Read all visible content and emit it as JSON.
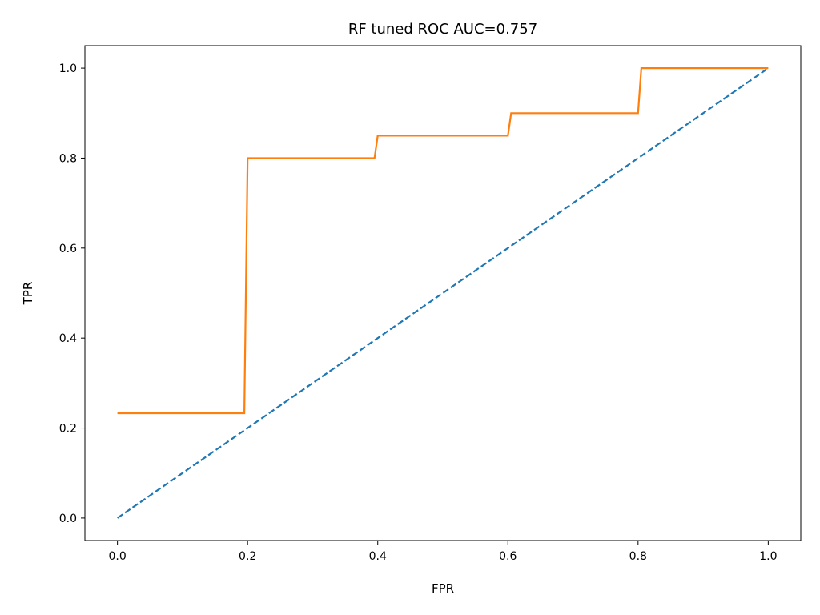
{
  "chart_data": {
    "type": "line",
    "title": "RF tuned ROC AUC=0.757",
    "xlabel": "FPR",
    "ylabel": "TPR",
    "xlim": [
      -0.05,
      1.05
    ],
    "ylim": [
      -0.05,
      1.05
    ],
    "xticks": [
      0.0,
      0.2,
      0.4,
      0.6,
      0.8,
      1.0
    ],
    "xtick_labels": [
      "0.0",
      "0.2",
      "0.4",
      "0.6",
      "0.8",
      "1.0"
    ],
    "yticks": [
      0.0,
      0.2,
      0.4,
      0.6,
      0.8,
      1.0
    ],
    "ytick_labels": [
      "0.0",
      "0.2",
      "0.4",
      "0.6",
      "0.8",
      "1.0"
    ],
    "grid": false,
    "legend": false,
    "series": [
      {
        "color": "#1f77b4",
        "style": "dashed",
        "x": [
          0.0,
          1.0
        ],
        "y": [
          0.0,
          1.0
        ]
      },
      {
        "color": "#ff7f0e",
        "style": "solid",
        "x": [
          0.0,
          0.195,
          0.2,
          0.395,
          0.4,
          0.6,
          0.605,
          0.8,
          0.805,
          1.0
        ],
        "y": [
          0.233,
          0.233,
          0.8,
          0.8,
          0.85,
          0.85,
          0.9,
          0.9,
          1.0,
          1.0
        ]
      }
    ]
  }
}
